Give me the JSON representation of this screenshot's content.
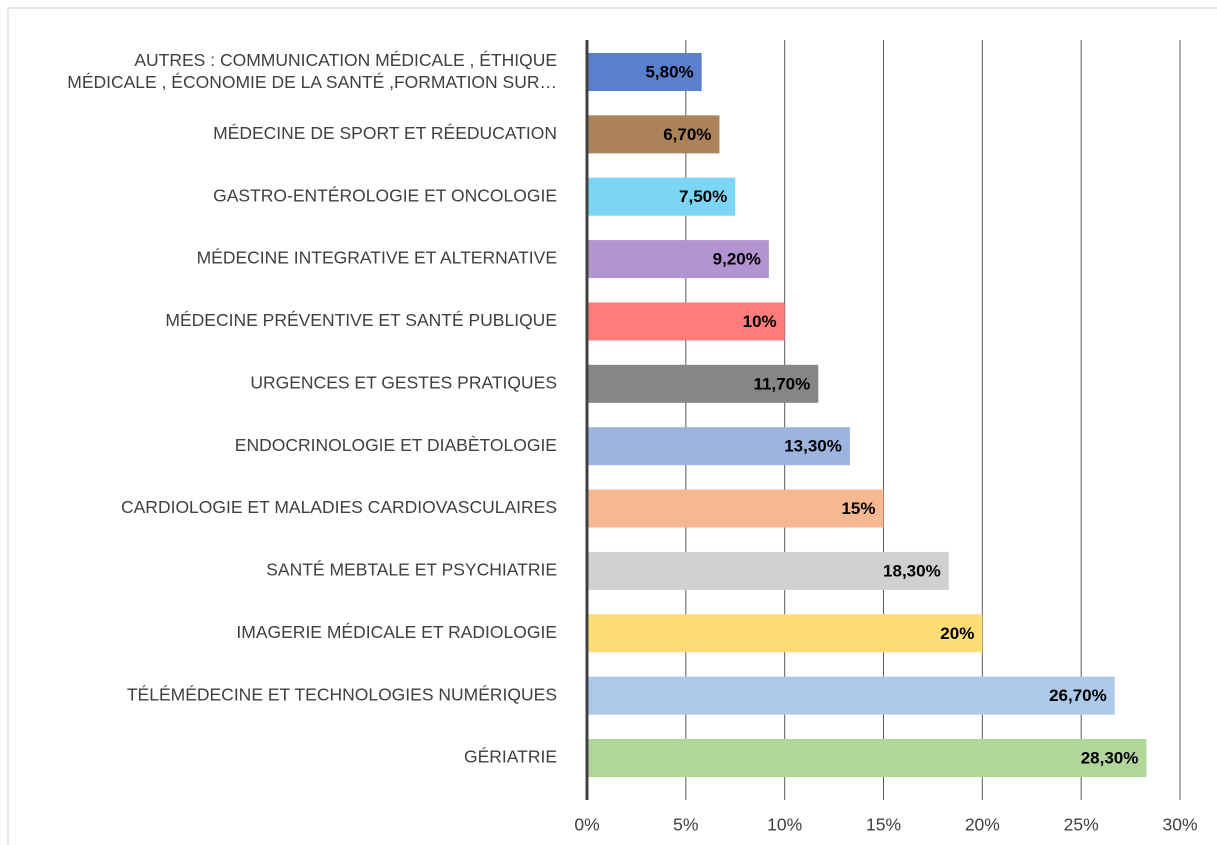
{
  "chart_data": {
    "type": "hbar",
    "categories": [
      "AUTRES : COMMUNICATION MÉDICALE , ÉTHIQUE\nMÉDICALE , ÉCONOMIE DE LA SANTÉ ,FORMATION SUR…",
      "MÉDECINE DE SPORT ET RÉEDUCATION",
      "GASTRO-ENTÉROLOGIE ET ONCOLOGIE",
      "MÉDECINE INTEGRATIVE ET ALTERNATIVE",
      "MÉDECINE PRÉVENTIVE ET SANTÉ PUBLIQUE",
      "URGENCES ET GESTES PRATIQUES",
      "ENDOCRINOLOGIE ET DIABÈTOLOGIE",
      "CARDIOLOGIE ET MALADIES CARDIOVASCULAIRES",
      "SANTÉ MEBTALE ET PSYCHIATRIE",
      "IMAGERIE MÉDICALE ET RADIOLOGIE",
      "TÉLÉMÉDECINE ET TECHNOLOGIES NUMÉRIQUES",
      "GÉRIATRIE"
    ],
    "values": [
      5.8,
      6.7,
      7.5,
      9.2,
      10,
      11.7,
      13.3,
      15,
      18.3,
      20,
      26.7,
      28.3
    ],
    "value_labels": [
      "5,80%",
      "6,70%",
      "7,50%",
      "9,20%",
      "10%",
      "11,70%",
      "13,30%",
      "15%",
      "18,30%",
      "20%",
      "26,70%",
      "28,30%"
    ],
    "colors": [
      "#5a7fcc",
      "#ad8258",
      "#7dd5f6",
      "#b493d1",
      "#ff7c7c",
      "#888684",
      "#9db3e0",
      "#f5b890",
      "#d0d0d0",
      "#ffdc74",
      "#adc9ea",
      "#b1d69a"
    ],
    "xlim": [
      0,
      30
    ],
    "xticks": [
      {
        "value": 0,
        "label": "0%"
      },
      {
        "value": 5,
        "label": "5%"
      },
      {
        "value": 10,
        "label": "10%"
      },
      {
        "value": 15,
        "label": "15%"
      },
      {
        "value": 20,
        "label": "20%"
      },
      {
        "value": 25,
        "label": "25%"
      },
      {
        "value": 30,
        "label": "30%"
      }
    ],
    "grid": true
  }
}
